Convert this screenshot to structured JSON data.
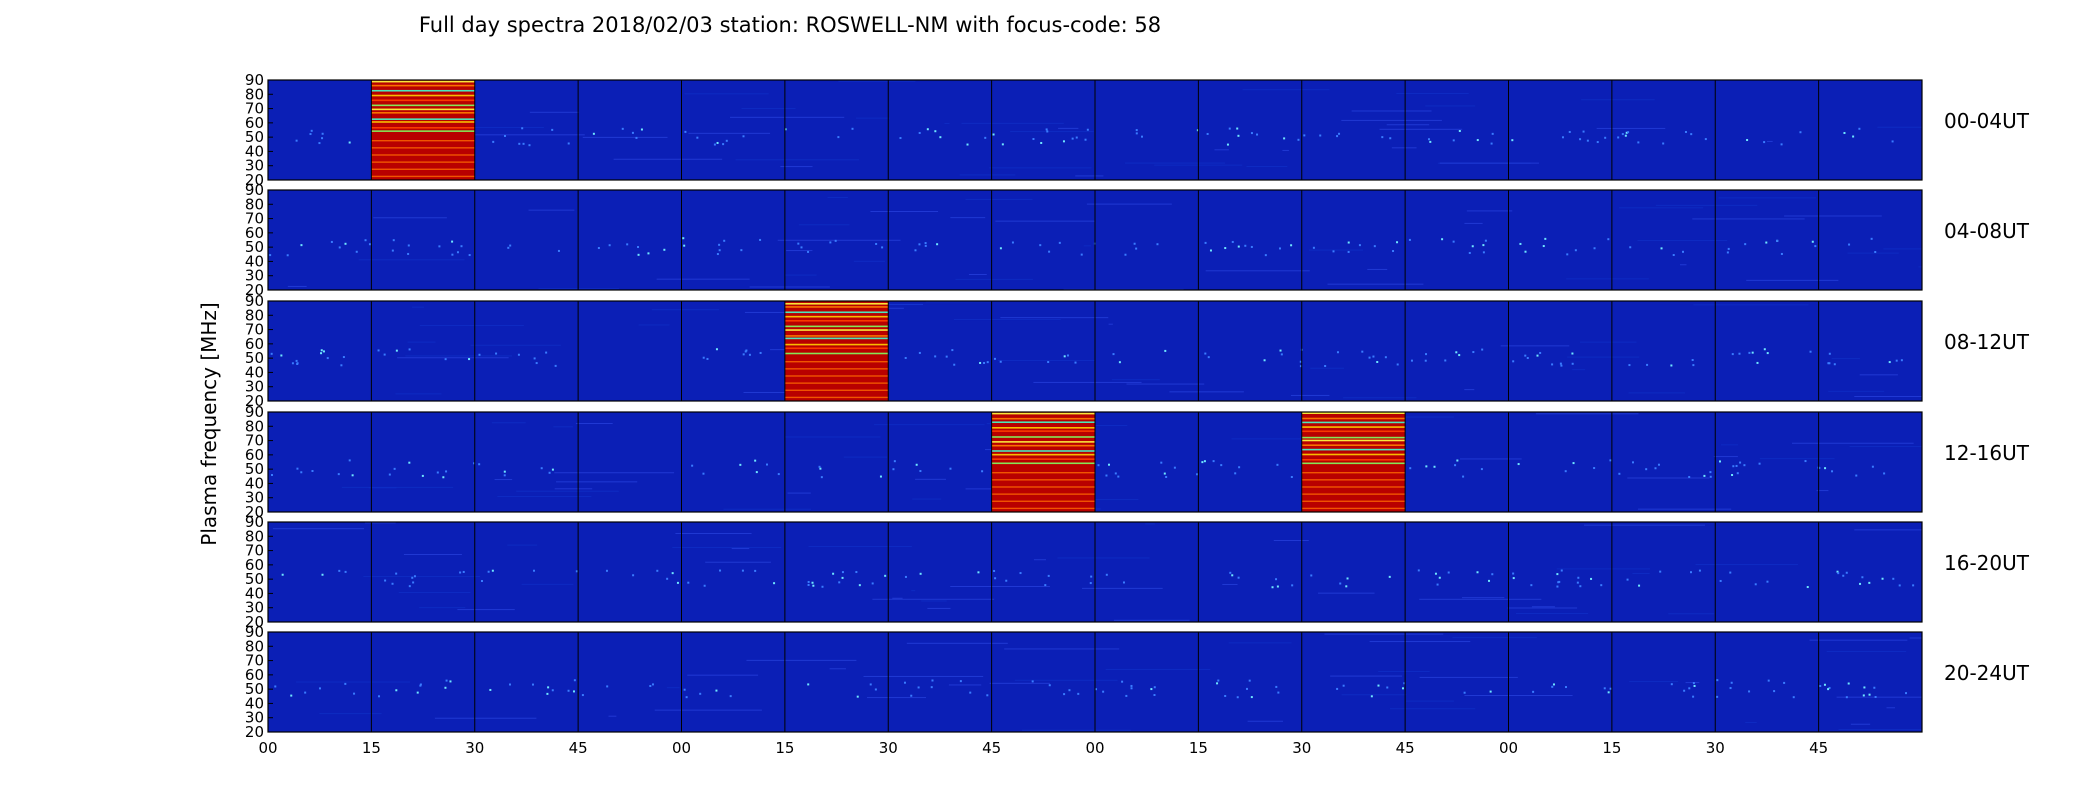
{
  "chart_data": {
    "type": "heatmap",
    "title": "Full day spectra 2018/02/03 station: ROSWELL-NM with focus-code: 58",
    "ylabel": "Plasma frequency [MHz]",
    "y_ticks": [
      "20",
      "30",
      "40",
      "50",
      "60",
      "70",
      "80",
      "90"
    ],
    "ylim": [
      20,
      90
    ],
    "x_ticks": [
      "00",
      "15",
      "30",
      "45",
      "00",
      "15",
      "30",
      "45",
      "00",
      "15",
      "30",
      "45",
      "00",
      "15",
      "30",
      "45"
    ],
    "panels": [
      "00-04UT",
      "04-08UT",
      "08-12UT",
      "12-16UT",
      "16-20UT",
      "20-24UT"
    ],
    "columns_per_panel": 16,
    "column_minutes": 15,
    "colormap": "jet",
    "background_color": "#0b1fb6",
    "active_columns": [
      {
        "panel": 0,
        "column": 1,
        "intensity": "high",
        "freq_range": [
          20,
          90
        ]
      },
      {
        "panel": 2,
        "column": 5,
        "intensity": "high",
        "freq_range": [
          20,
          90
        ]
      },
      {
        "panel": 3,
        "column": 7,
        "intensity": "high",
        "freq_range": [
          20,
          90
        ]
      },
      {
        "panel": 3,
        "column": 10,
        "intensity": "high",
        "freq_range": [
          20,
          90
        ]
      }
    ]
  }
}
